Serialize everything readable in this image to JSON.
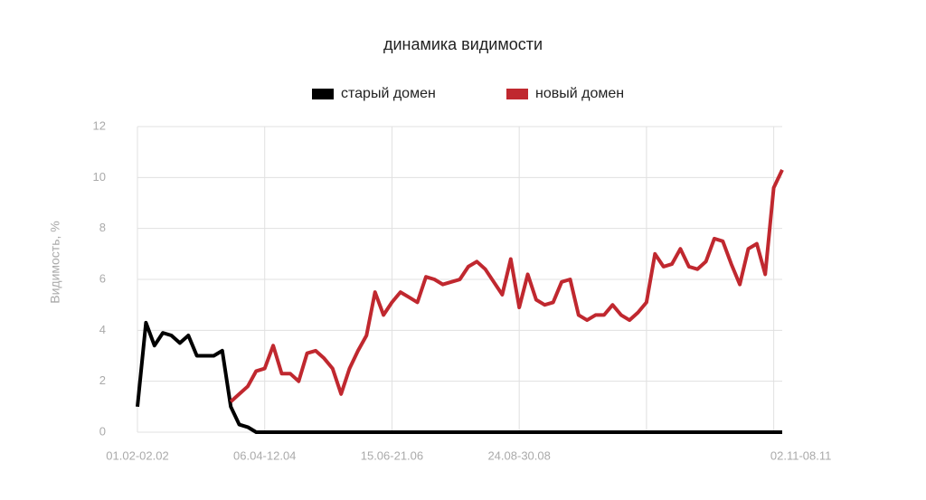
{
  "chart_data": {
    "type": "line",
    "title": "динамика видимости",
    "y_label": "Видимость, %",
    "categories": [
      "01.02-02.02",
      null,
      null,
      null,
      null,
      null,
      null,
      null,
      null,
      null,
      null,
      null,
      null,
      null,
      null,
      "06.04-12.04",
      null,
      null,
      null,
      null,
      null,
      null,
      null,
      null,
      null,
      null,
      null,
      null,
      null,
      null,
      "15.06-21.06",
      null,
      null,
      null,
      null,
      null,
      null,
      null,
      null,
      null,
      null,
      null,
      null,
      null,
      null,
      "24.08-30.08",
      null,
      null,
      null,
      null,
      null,
      null,
      null,
      null,
      null,
      null,
      null,
      null,
      null,
      null,
      null,
      null,
      null,
      null,
      null,
      null,
      null,
      null,
      null,
      null,
      null,
      null,
      null,
      null,
      null,
      "02.11-08.11",
      null
    ],
    "series": [
      {
        "name": "старый домен",
        "color": "#000000",
        "values": [
          1.0,
          4.3,
          3.4,
          3.9,
          3.8,
          3.5,
          3.8,
          3.0,
          3.0,
          3.0,
          3.2,
          1.0,
          0.3,
          0.2,
          0,
          0,
          0,
          0,
          0,
          0,
          0,
          0,
          0,
          0,
          0,
          0,
          0,
          0,
          0,
          0,
          0,
          0,
          0,
          0,
          0,
          0,
          0,
          0,
          0,
          0,
          0,
          0,
          0,
          0,
          0,
          0,
          0,
          0,
          0,
          0,
          0,
          0,
          0,
          0,
          0,
          0,
          0,
          0,
          0,
          0,
          0,
          0,
          0,
          0,
          0,
          0,
          0,
          0,
          0,
          0,
          0,
          0,
          0,
          0,
          0,
          0,
          0
        ]
      },
      {
        "name": "новый домен",
        "color": "#c0282f",
        "values": [
          null,
          null,
          null,
          null,
          null,
          null,
          null,
          null,
          null,
          null,
          null,
          1.2,
          1.5,
          1.8,
          2.4,
          2.5,
          3.4,
          2.3,
          2.3,
          2.0,
          3.1,
          3.2,
          2.9,
          2.5,
          1.5,
          2.5,
          3.2,
          3.8,
          5.5,
          4.6,
          5.1,
          5.5,
          5.3,
          5.1,
          6.1,
          6.0,
          5.8,
          5.9,
          6.0,
          6.5,
          6.7,
          6.4,
          5.9,
          5.4,
          6.8,
          4.9,
          6.2,
          5.2,
          5.0,
          5.1,
          5.9,
          6.0,
          4.6,
          4.4,
          4.6,
          4.6,
          5.0,
          4.6,
          4.4,
          4.7,
          5.1,
          7.0,
          6.5,
          6.6,
          7.2,
          6.5,
          6.4,
          6.7,
          7.6,
          7.5,
          6.6,
          5.8,
          7.2,
          7.4,
          6.2,
          9.6,
          10.3
        ]
      }
    ],
    "ylim": [
      0,
      12
    ],
    "yticks": [
      0,
      2,
      4,
      6,
      8,
      10,
      12
    ],
    "grid": true,
    "legend": "top"
  }
}
